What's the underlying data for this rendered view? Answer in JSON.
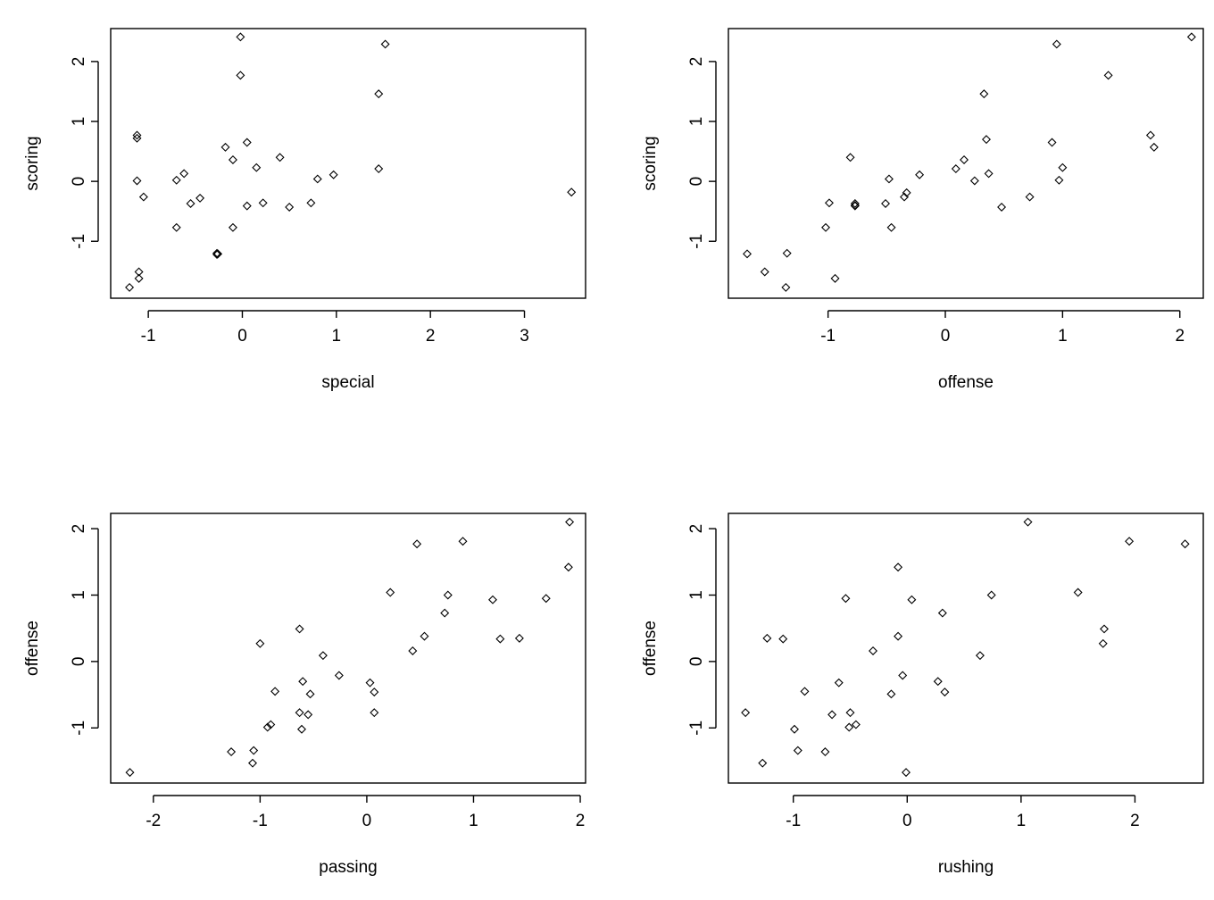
{
  "chart_data": [
    {
      "type": "scatter",
      "title": "",
      "xlabel": "special",
      "ylabel": "scoring",
      "xlim": [
        -1.4,
        3.65
      ],
      "ylim": [
        -1.95,
        2.55
      ],
      "xticks": [
        "-1",
        "0",
        "1",
        "2",
        "3"
      ],
      "yticks": [
        "-1",
        "0",
        "1",
        "2"
      ],
      "grid": false,
      "points": [
        {
          "x": -1.2,
          "y": -1.77
        },
        {
          "x": -1.1,
          "y": -1.62
        },
        {
          "x": -1.1,
          "y": -1.51
        },
        {
          "x": -1.12,
          "y": 0.77
        },
        {
          "x": -1.12,
          "y": 0.72
        },
        {
          "x": -1.12,
          "y": 0.01
        },
        {
          "x": -1.05,
          "y": -0.26
        },
        {
          "x": -0.7,
          "y": 0.02
        },
        {
          "x": -0.62,
          "y": 0.13
        },
        {
          "x": -0.55,
          "y": -0.37
        },
        {
          "x": -0.45,
          "y": -0.28
        },
        {
          "x": -0.7,
          "y": -0.77
        },
        {
          "x": -0.27,
          "y": -1.2
        },
        {
          "x": -0.26,
          "y": -1.21
        },
        {
          "x": -0.27,
          "y": -1.22
        },
        {
          "x": -0.18,
          "y": 0.57
        },
        {
          "x": -0.1,
          "y": 0.36
        },
        {
          "x": -0.1,
          "y": -0.77
        },
        {
          "x": -0.02,
          "y": 2.41
        },
        {
          "x": -0.02,
          "y": 1.77
        },
        {
          "x": 0.05,
          "y": 0.65
        },
        {
          "x": 0.05,
          "y": -0.41
        },
        {
          "x": 0.15,
          "y": 0.23
        },
        {
          "x": 0.22,
          "y": -0.36
        },
        {
          "x": 0.4,
          "y": 0.4
        },
        {
          "x": 0.5,
          "y": -0.43
        },
        {
          "x": 0.73,
          "y": -0.36
        },
        {
          "x": 0.8,
          "y": 0.04
        },
        {
          "x": 0.97,
          "y": 0.11
        },
        {
          "x": 1.45,
          "y": 1.46
        },
        {
          "x": 1.45,
          "y": 0.21
        },
        {
          "x": 1.52,
          "y": 2.29
        },
        {
          "x": 3.5,
          "y": -0.18
        }
      ]
    },
    {
      "type": "scatter",
      "title": "",
      "xlabel": "offense",
      "ylabel": "scoring",
      "xlim": [
        -1.85,
        2.2
      ],
      "ylim": [
        -1.95,
        2.55
      ],
      "xticks": [
        "-1",
        "0",
        "1",
        "2"
      ],
      "yticks": [
        "-1",
        "0",
        "1",
        "2"
      ],
      "grid": false,
      "points": [
        {
          "x": -1.69,
          "y": -1.21
        },
        {
          "x": -1.54,
          "y": -1.51
        },
        {
          "x": -1.36,
          "y": -1.77
        },
        {
          "x": -1.35,
          "y": -1.2
        },
        {
          "x": -1.02,
          "y": -0.77
        },
        {
          "x": -0.99,
          "y": -0.36
        },
        {
          "x": -0.94,
          "y": -1.62
        },
        {
          "x": -0.81,
          "y": 0.4
        },
        {
          "x": -0.77,
          "y": -0.37
        },
        {
          "x": -0.77,
          "y": -0.4
        },
        {
          "x": -0.77,
          "y": -0.41
        },
        {
          "x": -0.51,
          "y": -0.37
        },
        {
          "x": -0.48,
          "y": 0.04
        },
        {
          "x": -0.46,
          "y": -0.77
        },
        {
          "x": -0.35,
          "y": -0.26
        },
        {
          "x": -0.33,
          "y": -0.19
        },
        {
          "x": -0.22,
          "y": 0.11
        },
        {
          "x": 0.09,
          "y": 0.21
        },
        {
          "x": 0.16,
          "y": 0.36
        },
        {
          "x": 0.25,
          "y": 0.01
        },
        {
          "x": 0.33,
          "y": 1.46
        },
        {
          "x": 0.35,
          "y": 0.7
        },
        {
          "x": 0.37,
          "y": 0.13
        },
        {
          "x": 0.48,
          "y": -0.43
        },
        {
          "x": 0.72,
          "y": -0.26
        },
        {
          "x": 0.91,
          "y": 0.65
        },
        {
          "x": 0.95,
          "y": 2.29
        },
        {
          "x": 0.97,
          "y": 0.02
        },
        {
          "x": 1.0,
          "y": 0.23
        },
        {
          "x": 1.39,
          "y": 1.77
        },
        {
          "x": 1.75,
          "y": 0.77
        },
        {
          "x": 1.78,
          "y": 0.57
        },
        {
          "x": 2.1,
          "y": 2.41
        }
      ]
    },
    {
      "type": "scatter",
      "title": "",
      "xlabel": "passing",
      "ylabel": "offense",
      "xlim": [
        -2.4,
        2.05
      ],
      "ylim": [
        -1.83,
        2.23
      ],
      "xticks": [
        "-2",
        "-1",
        "0",
        "1",
        "2"
      ],
      "yticks": [
        "-1",
        "0",
        "1",
        "2"
      ],
      "grid": false,
      "points": [
        {
          "x": -2.22,
          "y": -1.67
        },
        {
          "x": -1.27,
          "y": -1.36
        },
        {
          "x": -1.06,
          "y": -1.34
        },
        {
          "x": -1.07,
          "y": -1.53
        },
        {
          "x": -1.0,
          "y": 0.27
        },
        {
          "x": -0.93,
          "y": -0.99
        },
        {
          "x": -0.9,
          "y": -0.95
        },
        {
          "x": -0.86,
          "y": -0.45
        },
        {
          "x": -0.63,
          "y": 0.49
        },
        {
          "x": -0.6,
          "y": -0.3
        },
        {
          "x": -0.63,
          "y": -0.77
        },
        {
          "x": -0.61,
          "y": -1.02
        },
        {
          "x": -0.55,
          "y": -0.8
        },
        {
          "x": -0.53,
          "y": -0.49
        },
        {
          "x": -0.41,
          "y": 0.09
        },
        {
          "x": -0.26,
          "y": -0.21
        },
        {
          "x": 0.03,
          "y": -0.32
        },
        {
          "x": 0.07,
          "y": -0.46
        },
        {
          "x": 0.07,
          "y": -0.77
        },
        {
          "x": 0.22,
          "y": 1.04
        },
        {
          "x": 0.43,
          "y": 0.16
        },
        {
          "x": 0.47,
          "y": 1.77
        },
        {
          "x": 0.54,
          "y": 0.38
        },
        {
          "x": 0.73,
          "y": 0.73
        },
        {
          "x": 0.76,
          "y": 1.0
        },
        {
          "x": 0.9,
          "y": 1.81
        },
        {
          "x": 1.18,
          "y": 0.93
        },
        {
          "x": 1.25,
          "y": 0.34
        },
        {
          "x": 1.43,
          "y": 0.35
        },
        {
          "x": 1.68,
          "y": 0.95
        },
        {
          "x": 1.89,
          "y": 1.42
        },
        {
          "x": 1.9,
          "y": 2.1
        }
      ]
    },
    {
      "type": "scatter",
      "title": "",
      "xlabel": "rushing",
      "ylabel": "offense",
      "xlim": [
        -1.57,
        2.6
      ],
      "ylim": [
        -1.83,
        2.23
      ],
      "xticks": [
        "-1",
        "0",
        "1",
        "2"
      ],
      "yticks": [
        "-1",
        "0",
        "1",
        "2"
      ],
      "grid": false,
      "points": [
        {
          "x": -1.42,
          "y": -0.77
        },
        {
          "x": -1.27,
          "y": -1.53
        },
        {
          "x": -1.23,
          "y": 0.35
        },
        {
          "x": -1.09,
          "y": 0.34
        },
        {
          "x": -0.99,
          "y": -1.02
        },
        {
          "x": -0.96,
          "y": -1.34
        },
        {
          "x": -0.9,
          "y": -0.45
        },
        {
          "x": -0.72,
          "y": -1.36
        },
        {
          "x": -0.66,
          "y": -0.8
        },
        {
          "x": -0.6,
          "y": -0.32
        },
        {
          "x": -0.54,
          "y": 0.95
        },
        {
          "x": -0.5,
          "y": -0.77
        },
        {
          "x": -0.51,
          "y": -0.99
        },
        {
          "x": -0.45,
          "y": -0.95
        },
        {
          "x": -0.3,
          "y": 0.16
        },
        {
          "x": -0.14,
          "y": -0.49
        },
        {
          "x": -0.08,
          "y": 1.42
        },
        {
          "x": -0.08,
          "y": 0.38
        },
        {
          "x": -0.04,
          "y": -0.21
        },
        {
          "x": -0.01,
          "y": -1.67
        },
        {
          "x": 0.04,
          "y": 0.93
        },
        {
          "x": 0.27,
          "y": -0.3
        },
        {
          "x": 0.31,
          "y": 0.73
        },
        {
          "x": 0.33,
          "y": -0.46
        },
        {
          "x": 0.64,
          "y": 0.09
        },
        {
          "x": 0.74,
          "y": 1.0
        },
        {
          "x": 1.06,
          "y": 2.1
        },
        {
          "x": 1.5,
          "y": 1.04
        },
        {
          "x": 1.72,
          "y": 0.27
        },
        {
          "x": 1.73,
          "y": 0.49
        },
        {
          "x": 1.95,
          "y": 1.81
        },
        {
          "x": 2.44,
          "y": 1.77
        }
      ]
    }
  ]
}
